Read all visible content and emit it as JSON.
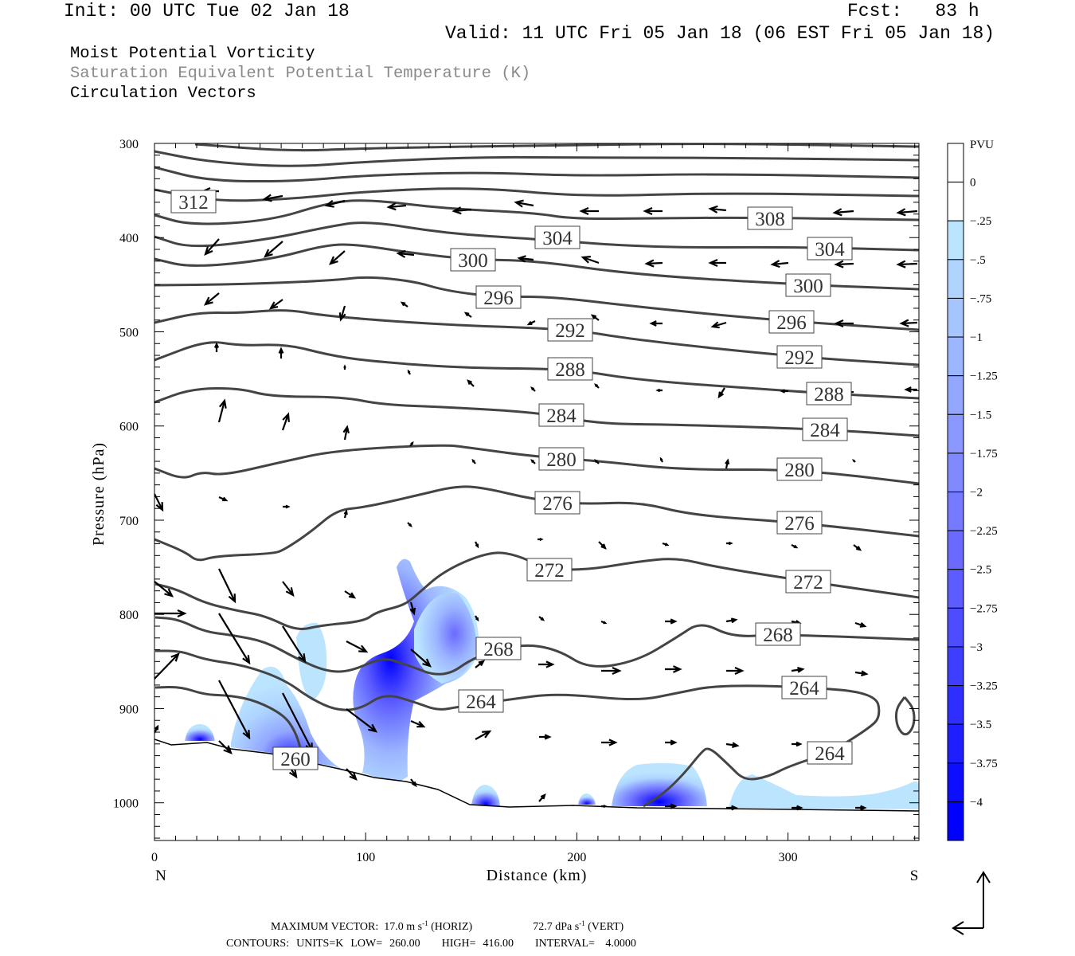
{
  "header": {
    "init": "Init: 00 UTC Tue 02 Jan 18",
    "fcst": "Fcst:   83 h",
    "valid": "Valid: 11 UTC Fri 05 Jan 18 (06 EST Fri 05 Jan 18)",
    "fields": [
      "Moist Potential Vorticity",
      "Saturation Equivalent Potential Temperature (K)",
      "Circulation Vectors"
    ]
  },
  "footer": {
    "max_vector_label": "MAXIMUM VECTOR:",
    "horiz": "17.0 m s",
    "horiz_sup": "-1",
    "horiz_tag": "(HORIZ)",
    "vert": "72.7 dPa s",
    "vert_sup": "-1",
    "vert_tag": "(VERT)",
    "contours": "CONTOURS:  UNITS=K  LOW=  260.00      HIGH=  416.00      INTERVAL=   4.0000"
  },
  "chart_data": {
    "type": "heatmap",
    "title": "Moist Potential Vorticity / Saturation Equivalent Potential Temperature (K) / Circulation Vectors",
    "xlabel": "Distance (km)",
    "ylabel": "Pressure (hPa)",
    "xlim": [
      0,
      362
    ],
    "ylim": [
      1040,
      300
    ],
    "x_ticks": [
      0,
      100,
      200,
      300
    ],
    "x_tick_labels": [
      "0",
      "100",
      "200",
      "300"
    ],
    "y_ticks": [
      300,
      400,
      500,
      600,
      700,
      800,
      900,
      1000
    ],
    "y_tick_labels": [
      "300",
      "400",
      "500",
      "600",
      "700",
      "800",
      "900",
      "1000"
    ],
    "x_end_labels": {
      "left": "N",
      "right": "S"
    },
    "contour_units": "K",
    "contour_labels": [
      {
        "value": "312"
      },
      {
        "value": "308"
      },
      {
        "value": "304"
      },
      {
        "value": "304"
      },
      {
        "value": "300"
      },
      {
        "value": "300"
      },
      {
        "value": "296"
      },
      {
        "value": "296"
      },
      {
        "value": "292"
      },
      {
        "value": "292"
      },
      {
        "value": "288"
      },
      {
        "value": "288"
      },
      {
        "value": "284"
      },
      {
        "value": "284"
      },
      {
        "value": "280"
      },
      {
        "value": "280"
      },
      {
        "value": "276"
      },
      {
        "value": "276"
      },
      {
        "value": "272"
      },
      {
        "value": "272"
      },
      {
        "value": "268"
      },
      {
        "value": "268"
      },
      {
        "value": "264"
      },
      {
        "value": "264"
      },
      {
        "value": "264"
      },
      {
        "value": "260"
      }
    ],
    "colorbar": {
      "unit": "PVU",
      "labels": [
        "0",
        "-.25",
        "-.5",
        "-.75",
        "-1",
        "-1.25",
        "-1.5",
        "-1.75",
        "-2",
        "-2.25",
        "-2.5",
        "-2.75",
        "-3",
        "-3.25",
        "-3.5",
        "-3.75",
        "-4"
      ],
      "colors": [
        "#ffffff",
        "#ffffff",
        "#bbe5ff",
        "#afd5ff",
        "#a5c5ff",
        "#9cb6ff",
        "#93a7ff",
        "#8a98ff",
        "#8189ff",
        "#767aff",
        "#6a6aff",
        "#5c5cff",
        "#4d4dff",
        "#3e3eff",
        "#2e2eff",
        "#1e1eff",
        "#0e0eff",
        "#0000ff"
      ]
    }
  }
}
